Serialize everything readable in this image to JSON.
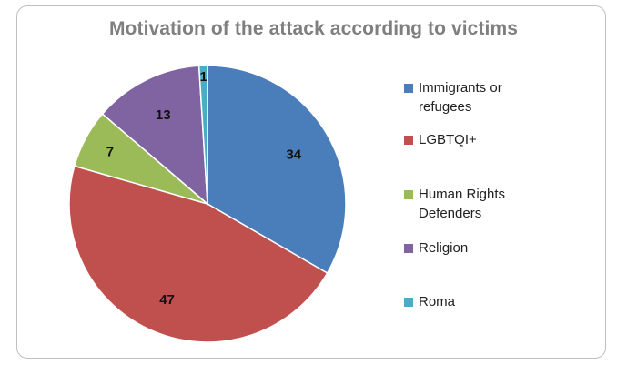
{
  "chart_data": {
    "type": "pie",
    "title": "Motivation of the attack according to victims",
    "categories": [
      "Immigrants or refugees",
      "LGBTQI+",
      "Human Rights Defenders",
      "Religion",
      "Roma"
    ],
    "values": [
      34,
      47,
      7,
      13,
      1
    ],
    "value_labels": [
      "34",
      "47",
      "7",
      "13",
      "1"
    ],
    "colors": [
      "#4a7ebb",
      "#c0504d",
      "#9bbb59",
      "#8064a2",
      "#4bacc6"
    ],
    "legend_position": "right"
  }
}
